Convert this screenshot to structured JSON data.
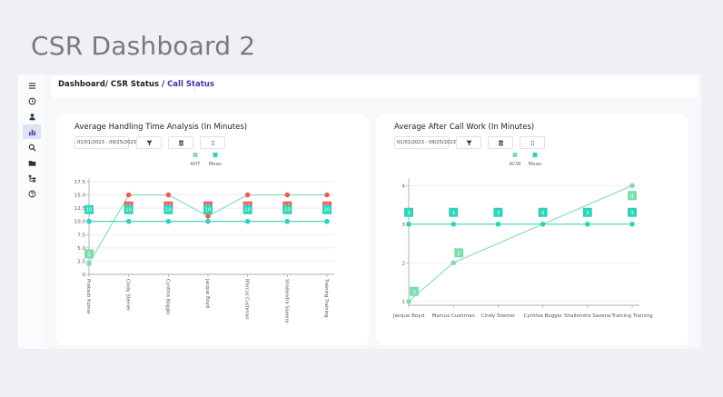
{
  "page": {
    "title": "CSR Dashboard 2"
  },
  "breadcrumb": {
    "part1": "Dashboard/ ",
    "part2": "CSR Status",
    "part3": " / ",
    "current": "Call Status"
  },
  "sidebar": {
    "items": [
      {
        "icon": "menu-icon"
      },
      {
        "icon": "clock-icon"
      },
      {
        "icon": "user-icon"
      },
      {
        "icon": "bar-chart-icon",
        "active": true
      },
      {
        "icon": "search-icon"
      },
      {
        "icon": "folder-icon"
      },
      {
        "icon": "hierarchy-icon"
      },
      {
        "icon": "help-icon"
      }
    ]
  },
  "colors": {
    "series_main": "#80dcb0",
    "series_mean": "#2fd3b9",
    "alt_high": "#ef5b5b",
    "grid": "#e9e9e9",
    "accent": "#4b30a8"
  },
  "aht_card": {
    "title": "Average Handling Time Analysis (In Minutes)",
    "date_range": "01/01/2023 - 09/25/2023"
  },
  "acw_card": {
    "title": "Average After Call Work (In Minutes)",
    "date_range": "01/01/2023 - 09/25/2023"
  },
  "chart_data": [
    {
      "type": "line",
      "title": "Average Handling Time Analysis (In Minutes)",
      "categories": [
        "Prakash Kumar",
        "Cindy Stemer",
        "Cynthia Boggio",
        "Jacque Boyd",
        "Marcus Cushman",
        "Shailendra Saxena",
        "Training Training"
      ],
      "series": [
        {
          "name": "AHT",
          "values": [
            2,
            15,
            15,
            11,
            15,
            15,
            15
          ]
        },
        {
          "name": "Mean",
          "values": [
            10,
            10,
            10,
            10,
            10,
            10,
            10
          ]
        }
      ],
      "ylim": [
        0,
        17.5
      ],
      "yticks": [
        "0",
        "2.5",
        "5.0",
        "7.5",
        "10.0",
        "12.5",
        "15.0",
        "17.5"
      ],
      "grid": true,
      "legend": "top-center"
    },
    {
      "type": "line",
      "title": "Average After Call Work (In Minutes)",
      "categories": [
        "Jacque Boyd",
        "Marcus Cushman",
        "Cindy Stemer",
        "Cynthia Boggio",
        "Shailendra Saxena",
        "Training Training"
      ],
      "series": [
        {
          "name": "ACW",
          "values": [
            1,
            2,
            null,
            null,
            null,
            4
          ]
        },
        {
          "name": "Mean",
          "values": [
            3,
            3,
            3,
            3,
            3,
            3
          ]
        }
      ],
      "ylim": [
        0.9,
        4.1
      ],
      "yticks": [
        "1",
        "2",
        "3",
        "4"
      ],
      "grid": true,
      "legend": "top-center"
    }
  ]
}
